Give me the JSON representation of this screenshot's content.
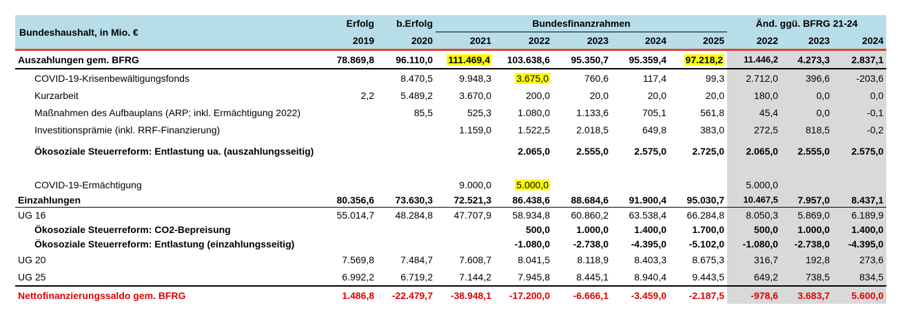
{
  "header": {
    "title": "Bundeshaushalt, in Mio. €",
    "erfolg": "Erfolg",
    "berfolg": "b.Erfolg",
    "bfr": "Bundesfinanzrahmen",
    "aend": "Änd. ggü. BFRG 21-24",
    "years": [
      "2019",
      "2020",
      "2021",
      "2022",
      "2023",
      "2024",
      "2025",
      "2022",
      "2023",
      "2024"
    ]
  },
  "rows": [
    {
      "label": "Auszahlungen gem. BFRG",
      "v": [
        "78.869,8",
        "96.110,0",
        "111.469,4",
        "103.638,6",
        "95.350,7",
        "95.359,4",
        "97.218,2",
        "11.446,2",
        "4.273,3",
        "2.837,1"
      ]
    },
    {
      "label": "COVID-19-Krisenbewältigungsfonds",
      "v": [
        "",
        "8.470,5",
        "9.948,3",
        "3.675,0",
        "760,6",
        "117,4",
        "99,3",
        "2.712,0",
        "396,6",
        "-203,6"
      ]
    },
    {
      "label": "Kurzarbeit",
      "v": [
        "2,2",
        "5.489,2",
        "3.670,0",
        "200,0",
        "20,0",
        "20,0",
        "20,0",
        "180,0",
        "0,0",
        "0,0"
      ]
    },
    {
      "label": "Maßnahmen des Aufbauplans (ARP; inkl. Ermächtigung 2022)",
      "v": [
        "",
        "85,5",
        "525,3",
        "1.080,0",
        "1.133,6",
        "705,1",
        "561,8",
        "45,4",
        "0,0",
        "-0,1"
      ]
    },
    {
      "label": "Investitionsprämie (inkl. RRF-Finanzierung)",
      "v": [
        "",
        "",
        "1.159,0",
        "1.522,5",
        "2.018,5",
        "649,8",
        "383,0",
        "272,5",
        "818,5",
        "-0,2"
      ]
    },
    {
      "label": "Ökosoziale Steuerreform: Entlastung ua. (auszahlungsseitig)",
      "v": [
        "",
        "",
        "",
        "2.065,0",
        "2.555,0",
        "2.575,0",
        "2.725,0",
        "2.065,0",
        "2.555,0",
        "2.575,0"
      ]
    },
    {
      "label": "COVID-19-Ermächtigung",
      "v": [
        "",
        "",
        "9.000,0",
        "5.000,0",
        "",
        "",
        "",
        "5.000,0",
        "",
        ""
      ]
    },
    {
      "label": "Einzahlungen",
      "v": [
        "80.356,6",
        "73.630,3",
        "72.521,3",
        "86.438,6",
        "88.684,6",
        "91.900,4",
        "95.030,7",
        "10.467,5",
        "7.957,0",
        "8.437,1"
      ]
    },
    {
      "label": "UG 16",
      "v": [
        "55.014,7",
        "48.284,8",
        "47.707,9",
        "58.934,8",
        "60.860,2",
        "63.538,4",
        "66.284,8",
        "8.050,3",
        "5.869,0",
        "6.189,9"
      ]
    },
    {
      "label": "Ökosoziale Steuerreform: CO2-Bepreisung",
      "v": [
        "",
        "",
        "",
        "500,0",
        "1.000,0",
        "1.400,0",
        "1.700,0",
        "500,0",
        "1.000,0",
        "1.400,0"
      ]
    },
    {
      "label": "Ökosoziale Steuerreform: Entlastung (einzahlungsseitig)",
      "v": [
        "",
        "",
        "",
        "-1.080,0",
        "-2.738,0",
        "-4.395,0",
        "-5.102,0",
        "-1.080,0",
        "-2.738,0",
        "-4.395,0"
      ]
    },
    {
      "label": "UG 20",
      "v": [
        "7.569,8",
        "7.484,7",
        "7.608,7",
        "8.041,5",
        "8.118,9",
        "8.403,3",
        "8.675,3",
        "316,7",
        "192,8",
        "273,6"
      ]
    },
    {
      "label": "UG 25",
      "v": [
        "6.992,2",
        "6.719,2",
        "7.144,2",
        "7.945,8",
        "8.445,1",
        "8.940,4",
        "9.443,5",
        "649,2",
        "738,5",
        "834,5"
      ]
    },
    {
      "label": "Nettofinanzierungssaldo gem. BFRG",
      "v": [
        "1.486,8",
        "-22.479,7",
        "-38.948,1",
        "-17.200,0",
        "-6.666,1",
        "-3.459,0",
        "-2.187,5",
        "-978,6",
        "3.683,7",
        "5.600,0"
      ]
    }
  ],
  "colors": {
    "header_bg": "#b7dde8",
    "grey": "#d9d9d9",
    "highlight": "#ffff00",
    "red": "#e00000",
    "red_line": "#e2402b"
  }
}
